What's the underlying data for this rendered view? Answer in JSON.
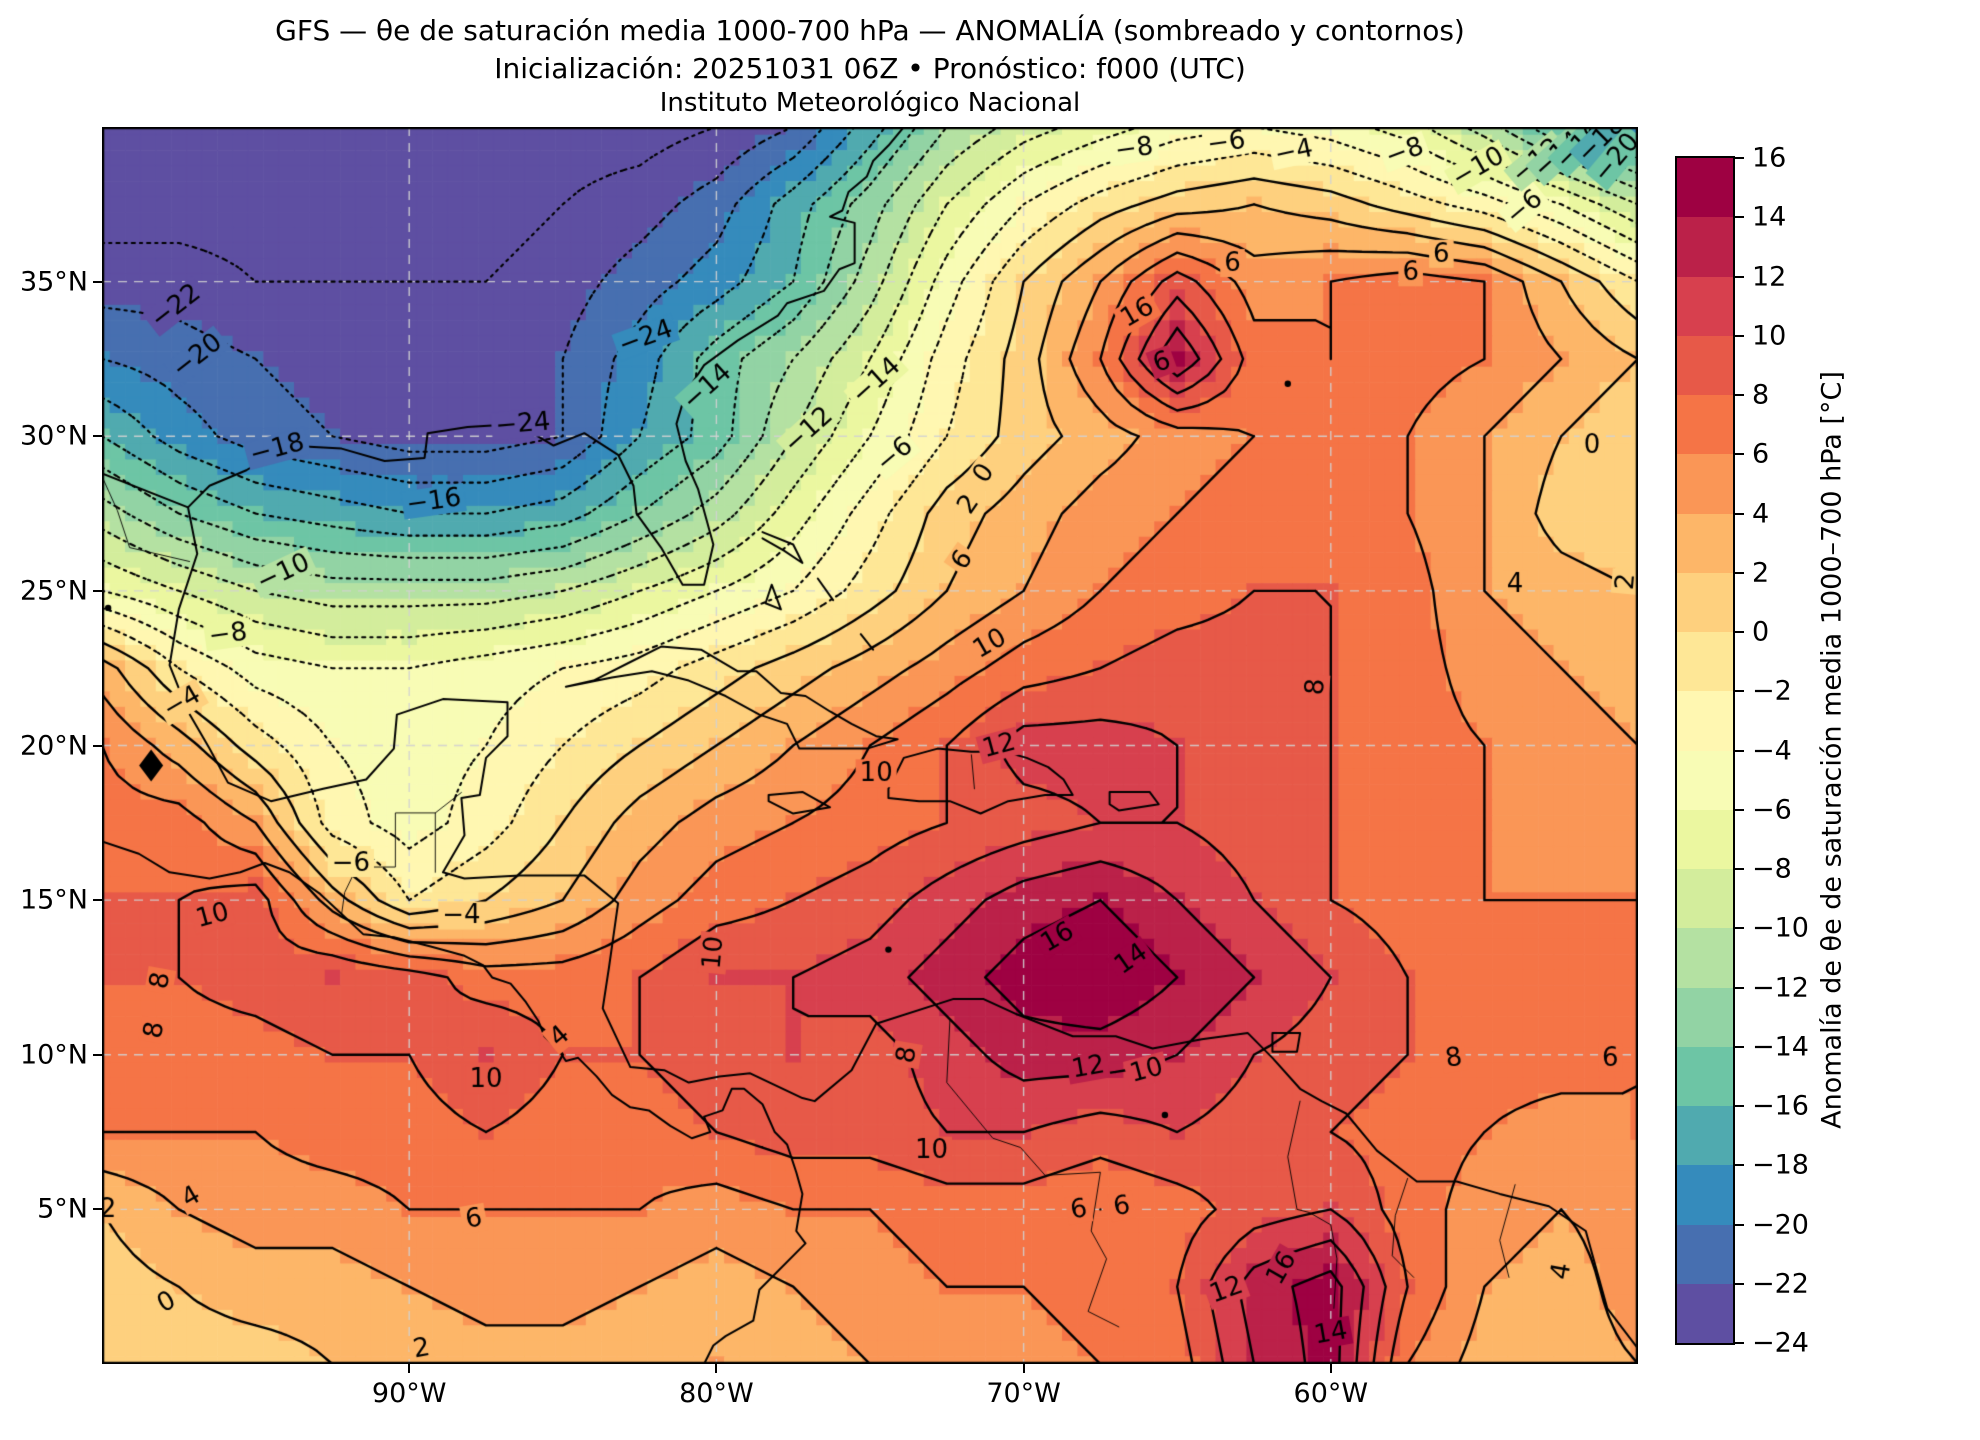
{
  "header": {
    "title_line1": "GFS — θe de saturación media 1000-700 hPa — ANOMALÍA (sombreado y contornos)",
    "title_line2": "Inicialización: 20251031 06Z   •   Pronóstico: f000 (UTC)",
    "title_line3": "Instituto Meteorológico Nacional"
  },
  "axes": {
    "lon_range": [
      -100,
      -50
    ],
    "lat_range": [
      0,
      40
    ],
    "x_ticks": [
      {
        "label": "90°W",
        "lon": -90
      },
      {
        "label": "80°W",
        "lon": -80
      },
      {
        "label": "70°W",
        "lon": -70
      },
      {
        "label": "60°W",
        "lon": -60
      }
    ],
    "y_ticks": [
      {
        "label": "35°N",
        "lat": 35
      },
      {
        "label": "30°N",
        "lat": 30
      },
      {
        "label": "25°N",
        "lat": 25
      },
      {
        "label": "20°N",
        "lat": 20
      },
      {
        "label": "15°N",
        "lat": 15
      },
      {
        "label": "10°N",
        "lat": 10
      },
      {
        "label": "5°N",
        "lat": 5
      }
    ],
    "gridline_lons": [
      -90,
      -80,
      -70,
      -60
    ],
    "gridline_lats": [
      5,
      10,
      15,
      20,
      25,
      30,
      35
    ]
  },
  "colorbar": {
    "label": "Anomalía de θe de saturación media 1000–700 hPa [°C]",
    "min": -24,
    "max": 16,
    "tick_step": 2,
    "ticks": [
      16,
      14,
      12,
      10,
      8,
      6,
      4,
      2,
      0,
      -2,
      -4,
      -6,
      -8,
      -10,
      -12,
      -14,
      -16,
      -18,
      -20,
      -22,
      -24
    ]
  },
  "chart_data": {
    "type": "heatmap",
    "title": "GFS theta-e saturation mean 1000-700 hPa anomaly",
    "units": "°C",
    "palette_low_to_high": [
      "#5e4fa2",
      "#476fb0",
      "#358bbc",
      "#50aaaf",
      "#6dc5a5",
      "#92d3a4",
      "#b4e1a2",
      "#d3ed9c",
      "#ebf7a0",
      "#f8fcb5",
      "#fff7b1",
      "#fee796",
      "#fed07e",
      "#fdb668",
      "#fa9656",
      "#f57446",
      "#e75948",
      "#d7404e",
      "#bb2149",
      "#9e0142"
    ],
    "contour_levels": [
      -24,
      -22,
      -20,
      -18,
      -16,
      -14,
      -12,
      -10,
      -8,
      -6,
      -4,
      -2,
      0,
      2,
      4,
      6,
      8,
      10,
      12,
      14,
      16
    ],
    "lons": [
      -100,
      -97.5,
      -95,
      -92.5,
      -90,
      -87.5,
      -85,
      -82.5,
      -80,
      -77.5,
      -75,
      -72.5,
      -70,
      -67.5,
      -65,
      -62.5,
      -60,
      -57.5,
      -55,
      -52.5,
      -50
    ],
    "lats": [
      40,
      37.5,
      35,
      32.5,
      30,
      27.5,
      25,
      22.5,
      20,
      17.5,
      15,
      12.5,
      10,
      7.5,
      5,
      2.5,
      0
    ],
    "values": [
      [
        -26,
        -26,
        -26,
        -26,
        -26,
        -26,
        -25,
        -25,
        -24,
        -22,
        -17,
        -12,
        -9,
        -7,
        -5,
        -4,
        -5,
        -7,
        -11,
        -16,
        -20
      ],
      [
        -25,
        -25,
        -25,
        -25,
        -25,
        -25,
        -24,
        -23,
        -21,
        -17,
        -13,
        -8,
        -4,
        -1,
        1,
        2,
        1,
        -1,
        -3,
        -6,
        -10
      ],
      [
        -23,
        -23,
        -24,
        -24,
        -24,
        -24,
        -23,
        -21,
        -19,
        -16,
        -11,
        -5,
        0,
        4,
        9,
        5,
        6,
        7,
        6,
        2,
        -2
      ],
      [
        -20,
        -21,
        -22,
        -23,
        -23,
        -23,
        -22,
        -19,
        -15,
        -12,
        -8,
        -3,
        1,
        6,
        14,
        7,
        6,
        7,
        6,
        4,
        2
      ],
      [
        -16,
        -19,
        -21,
        -22,
        -23,
        -23,
        -22,
        -18,
        -15,
        -10,
        -6,
        -2,
        1,
        3,
        5,
        6,
        7,
        6,
        4,
        2,
        0
      ],
      [
        -11,
        -14,
        -16,
        -17,
        -18,
        -18,
        -17,
        -14,
        -11,
        -7,
        -3,
        1,
        3,
        5,
        6,
        7,
        7,
        6,
        4,
        1,
        0
      ],
      [
        -6,
        -8,
        -10,
        -11,
        -11,
        -11,
        -10,
        -8,
        -6,
        -4,
        -1,
        2,
        4,
        6,
        7,
        8,
        8,
        7,
        4,
        3,
        2
      ],
      [
        3,
        -2,
        -5,
        -6,
        -6,
        -5,
        -4,
        -3,
        -1,
        1,
        3,
        5,
        7,
        8,
        9,
        9,
        8,
        7,
        5,
        4,
        3
      ],
      [
        6,
        3,
        -1,
        -4,
        -5,
        -4,
        -2,
        0,
        2,
        4,
        6,
        8,
        11,
        11,
        10,
        9,
        8,
        7,
        6,
        5,
        4
      ],
      [
        7,
        7,
        4,
        -3,
        -5,
        -3,
        0,
        3,
        5,
        6,
        7,
        8,
        9,
        10,
        10,
        9,
        8,
        7,
        6,
        5,
        5
      ],
      [
        8,
        8,
        9,
        3,
        -2,
        0,
        2,
        5,
        7,
        8,
        9,
        11,
        13,
        14,
        12,
        10,
        8,
        7,
        6,
        6,
        6
      ],
      [
        8,
        8,
        9,
        10,
        9,
        7,
        7,
        8,
        10,
        10,
        11,
        13,
        15,
        16,
        14,
        12,
        10,
        8,
        7,
        7,
        7
      ],
      [
        7,
        7,
        7,
        8,
        8,
        10,
        8,
        8,
        9,
        10,
        9,
        11,
        13,
        13,
        12,
        10,
        9,
        8,
        7,
        7,
        6
      ],
      [
        6,
        6,
        6,
        7,
        7,
        8,
        7,
        7,
        8,
        9,
        9,
        10,
        10,
        9,
        10,
        9,
        8,
        7,
        6,
        5,
        6
      ],
      [
        2,
        4,
        5,
        5,
        6,
        6,
        6,
        6,
        5,
        6,
        6,
        7,
        7,
        6,
        7,
        9,
        10,
        7,
        5,
        4,
        5
      ],
      [
        1,
        2,
        3,
        3,
        4,
        5,
        5,
        4,
        3,
        4,
        5,
        6,
        6,
        7,
        8,
        13,
        15,
        8,
        4,
        3,
        5
      ],
      [
        0,
        1,
        1,
        2,
        2,
        3,
        3,
        2,
        4,
        3,
        4,
        5,
        5,
        6,
        7,
        12,
        15,
        6,
        3,
        3,
        4
      ]
    ],
    "contour_labels": [
      {
        "v": -22,
        "lon": -97.6,
        "lat": 34.2,
        "rot": -38
      },
      {
        "v": -20,
        "lon": -96.9,
        "lat": 32.6,
        "rot": -38
      },
      {
        "v": -24,
        "lon": -86.3,
        "lat": 30.4,
        "rot": -5
      },
      {
        "v": -24,
        "lon": -82.3,
        "lat": 33.2,
        "rot": -20
      },
      {
        "v": -18,
        "lon": -94.3,
        "lat": 29.6,
        "rot": -15
      },
      {
        "v": -16,
        "lon": -89.2,
        "lat": 27.9,
        "rot": -8
      },
      {
        "v": -10,
        "lon": -94.1,
        "lat": 25.6,
        "rot": -25
      },
      {
        "v": -14,
        "lon": -80.3,
        "lat": 31.6,
        "rot": -42
      },
      {
        "v": -14,
        "lon": -74.8,
        "lat": 31.8,
        "rot": -42
      },
      {
        "v": -12,
        "lon": -77.0,
        "lat": 30.2,
        "rot": -42
      },
      {
        "v": -6,
        "lon": -74.2,
        "lat": 29.4,
        "rot": -40
      },
      {
        "v": -8,
        "lon": -95.9,
        "lat": 23.6,
        "rot": -8
      },
      {
        "v": -4,
        "lon": -97.4,
        "lat": 21.4,
        "rot": -30
      },
      {
        "v": -6,
        "lon": -91.9,
        "lat": 16.2,
        "rot": 0
      },
      {
        "v": -4,
        "lon": -88.3,
        "lat": 14.5,
        "rot": 0
      },
      {
        "v": -8,
        "lon": -66.4,
        "lat": 39.3,
        "rot": -8
      },
      {
        "v": -6,
        "lon": -63.4,
        "lat": 39.5,
        "rot": -8
      },
      {
        "v": -4,
        "lon": -61.2,
        "lat": 39.2,
        "rot": -12
      },
      {
        "v": -8,
        "lon": -57.6,
        "lat": 39.2,
        "rot": -20
      },
      {
        "v": -10,
        "lon": -55.2,
        "lat": 38.7,
        "rot": -30
      },
      {
        "v": -12,
        "lon": -53.3,
        "lat": 38.9,
        "rot": -40
      },
      {
        "v": -14,
        "lon": -52.6,
        "lat": 39.1,
        "rot": -42
      },
      {
        "v": -16,
        "lon": -51.9,
        "lat": 39.4,
        "rot": -45
      },
      {
        "v": -18,
        "lon": -51.2,
        "lat": 39.6,
        "rot": -45
      },
      {
        "v": -20,
        "lon": -50.7,
        "lat": 39.0,
        "rot": -50
      },
      {
        "v": -6,
        "lon": -53.7,
        "lat": 37.4,
        "rot": -40
      },
      {
        "v": 0,
        "lon": -71.3,
        "lat": 28.8,
        "rot": -55
      },
      {
        "v": 2,
        "lon": -71.8,
        "lat": 27.8,
        "rot": -55
      },
      {
        "v": 6,
        "lon": -72.0,
        "lat": 26.0,
        "rot": -55
      },
      {
        "v": 10,
        "lon": -71.1,
        "lat": 23.3,
        "rot": -30
      },
      {
        "v": 12,
        "lon": -70.8,
        "lat": 20.0,
        "rot": -15
      },
      {
        "v": 10,
        "lon": -74.8,
        "lat": 19.1,
        "rot": 0
      },
      {
        "v": 8,
        "lon": -60.5,
        "lat": 21.9,
        "rot": -85
      },
      {
        "v": 4,
        "lon": -54.0,
        "lat": 25.2,
        "rot": 0
      },
      {
        "v": 2,
        "lon": -50.4,
        "lat": 25.3,
        "rot": -85
      },
      {
        "v": 0,
        "lon": -51.5,
        "lat": 29.7,
        "rot": 0
      },
      {
        "v": 16,
        "lon": -68.9,
        "lat": 13.8,
        "rot": -30
      },
      {
        "v": 14,
        "lon": -66.5,
        "lat": 13.1,
        "rot": -35
      },
      {
        "v": 12,
        "lon": -67.9,
        "lat": 9.6,
        "rot": -10
      },
      {
        "v": 10,
        "lon": -66.0,
        "lat": 9.5,
        "rot": -15
      },
      {
        "v": 8,
        "lon": -73.8,
        "lat": 10.0,
        "rot": -80
      },
      {
        "v": 10,
        "lon": -73.0,
        "lat": 6.9,
        "rot": 0
      },
      {
        "v": 6,
        "lon": -68.2,
        "lat": 5.0,
        "rot": -10
      },
      {
        "v": 6,
        "lon": -66.8,
        "lat": 5.1,
        "rot": -10
      },
      {
        "v": 10,
        "lon": -80.1,
        "lat": 13.3,
        "rot": -85
      },
      {
        "v": 10,
        "lon": -96.4,
        "lat": 14.5,
        "rot": -15
      },
      {
        "v": 8,
        "lon": -98.1,
        "lat": 12.4,
        "rot": -80
      },
      {
        "v": 8,
        "lon": -98.3,
        "lat": 10.8,
        "rot": -80
      },
      {
        "v": 10,
        "lon": -87.5,
        "lat": 9.2,
        "rot": 0
      },
      {
        "v": 4,
        "lon": -85.1,
        "lat": 10.6,
        "rot": -40
      },
      {
        "v": 2,
        "lon": -99.8,
        "lat": 5.0,
        "rot": 0
      },
      {
        "v": 4,
        "lon": -97.1,
        "lat": 5.4,
        "rot": -30
      },
      {
        "v": 0,
        "lon": -97.9,
        "lat": 2.0,
        "rot": -30
      },
      {
        "v": 6,
        "lon": -87.9,
        "lat": 4.7,
        "rot": -10
      },
      {
        "v": 2,
        "lon": -89.6,
        "lat": 0.5,
        "rot": -10
      },
      {
        "v": 16,
        "lon": -61.6,
        "lat": 3.1,
        "rot": -60
      },
      {
        "v": 14,
        "lon": -60.0,
        "lat": 1.0,
        "rot": -10
      },
      {
        "v": 12,
        "lon": -63.4,
        "lat": 2.4,
        "rot": -20
      },
      {
        "v": 8,
        "lon": -56.0,
        "lat": 9.9,
        "rot": -10
      },
      {
        "v": 6,
        "lon": -50.9,
        "lat": 9.9,
        "rot": 0
      },
      {
        "v": 4,
        "lon": -52.5,
        "lat": 3.0,
        "rot": -80
      },
      {
        "v": 6,
        "lon": -63.2,
        "lat": 35.6,
        "rot": 0
      },
      {
        "v": 6,
        "lon": -56.4,
        "lat": 35.9,
        "rot": 0
      },
      {
        "v": 6,
        "lon": -57.4,
        "lat": 35.3,
        "rot": 0
      },
      {
        "v": 16,
        "lon": -66.3,
        "lat": 34.0,
        "rot": -30
      },
      {
        "v": 6,
        "lon": -65.5,
        "lat": 32.4,
        "rot": -20
      }
    ],
    "markers": [
      {
        "type": "diamond",
        "lon": -98.4,
        "lat": 19.35
      },
      {
        "type": "dot",
        "lon": -66.0,
        "lat": 33.85
      },
      {
        "type": "dot",
        "lon": -99.8,
        "lat": 24.45
      },
      {
        "type": "dot",
        "lon": -74.4,
        "lat": 13.4
      },
      {
        "type": "dot",
        "lon": -65.4,
        "lat": 8.05
      },
      {
        "type": "dot",
        "lon": -61.4,
        "lat": 31.7
      }
    ]
  }
}
